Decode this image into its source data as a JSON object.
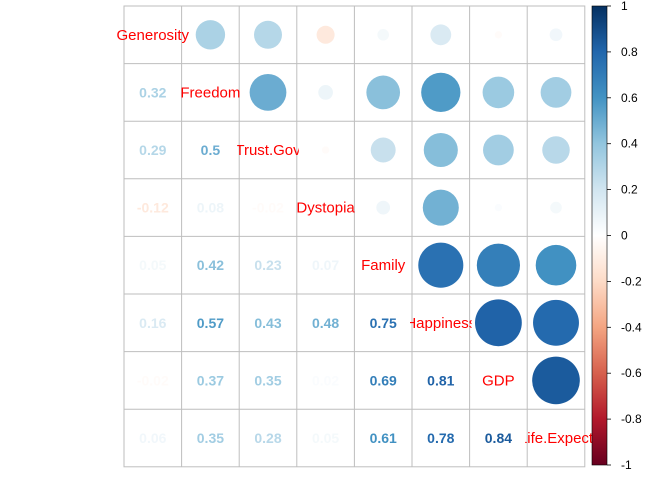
{
  "chart_data": {
    "type": "heatmap",
    "style": "correlation-matrix",
    "layout": "upper circles, lower numbers, variable names on diagonal",
    "variables": [
      "Generosity",
      "Freedom",
      "Trust.Gov",
      "Dystopia",
      "Family",
      "Happiness",
      "GDP",
      "Life.Expect"
    ],
    "display_labels": [
      "Generosity",
      "Freedom",
      "Trust.Gov",
      "Dystopia",
      "Family",
      "Happiness",
      "GDP",
      "Life.Expect"
    ],
    "matrix": [
      [
        1.0,
        0.32,
        0.29,
        -0.12,
        0.05,
        0.16,
        -0.02,
        0.06
      ],
      [
        0.32,
        1.0,
        0.5,
        0.08,
        0.42,
        0.57,
        0.37,
        0.35
      ],
      [
        0.29,
        0.5,
        1.0,
        -0.02,
        0.23,
        0.43,
        0.35,
        0.28
      ],
      [
        -0.12,
        0.08,
        -0.02,
        1.0,
        0.07,
        0.48,
        0.02,
        0.05
      ],
      [
        0.05,
        0.42,
        0.23,
        0.07,
        1.0,
        0.75,
        0.69,
        0.61
      ],
      [
        0.16,
        0.57,
        0.43,
        0.48,
        0.75,
        1.0,
        0.81,
        0.78
      ],
      [
        -0.02,
        0.37,
        0.35,
        0.02,
        0.69,
        0.81,
        1.0,
        0.84
      ],
      [
        0.06,
        0.35,
        0.28,
        0.05,
        0.61,
        0.78,
        0.84,
        1.0
      ]
    ],
    "number_labels": [
      [
        null,
        null,
        null,
        null,
        null,
        null,
        null,
        null
      ],
      [
        "0.32",
        null,
        null,
        null,
        null,
        null,
        null,
        null
      ],
      [
        "0.29",
        "0.5",
        null,
        null,
        null,
        null,
        null,
        null
      ],
      [
        "-0.12",
        "0.08",
        "-0.02",
        null,
        null,
        null,
        null,
        null
      ],
      [
        "0.05",
        "0.42",
        "0.23",
        "0.07",
        null,
        null,
        null,
        null
      ],
      [
        "0.16",
        "0.57",
        "0.43",
        "0.48",
        "0.75",
        null,
        null,
        null
      ],
      [
        "-0.02",
        "0.37",
        "0.35",
        "0.02",
        "0.69",
        "0.81",
        null,
        null
      ],
      [
        "0.06",
        "0.35",
        "0.28",
        "0.05",
        "0.61",
        "0.78",
        "0.84",
        null
      ]
    ],
    "colorbar": {
      "range": [
        -1,
        1
      ],
      "ticks": [
        -1,
        -0.8,
        -0.6,
        -0.4,
        -0.2,
        0,
        0.2,
        0.4,
        0.6,
        0.8,
        1
      ],
      "tick_labels": [
        "-1",
        "-0.8",
        "-0.6",
        "-0.4",
        "-0.2",
        "0",
        "0.2",
        "0.4",
        "0.6",
        "0.8",
        "1"
      ],
      "colors": [
        "#67001F",
        "#B2182B",
        "#D6604D",
        "#F4A582",
        "#FDDBC7",
        "#FFFFFF",
        "#D1E5F0",
        "#92C5DE",
        "#4393C3",
        "#2166AC",
        "#053061"
      ]
    },
    "label_color": "#FF0000",
    "grid": true,
    "legend": "colorbar-right"
  }
}
